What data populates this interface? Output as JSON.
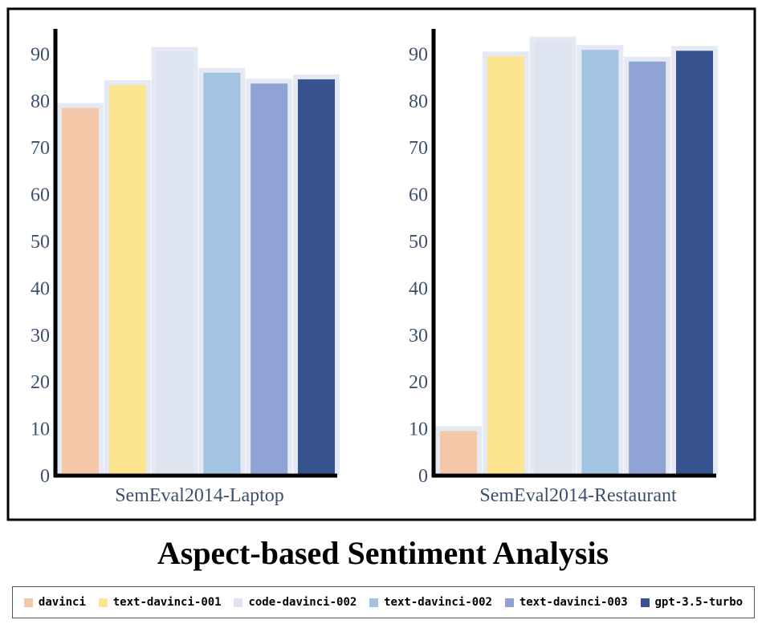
{
  "title": "Aspect-based Sentiment Analysis",
  "colors": {
    "davinci": "#f5c7a9",
    "text-davinci-001": "#fde491",
    "code-davinci-002": "#dde3ef",
    "text-davinci-002": "#a3c3e3",
    "text-davinci-003": "#8fa3d5",
    "gpt-3.5-turbo": "#36528f",
    "bar_shadow": "#e4e9f3",
    "axis": "#000000",
    "tick_text": "#3d4f6e",
    "frame": "#000000"
  },
  "legend": [
    {
      "label": "davinci",
      "color": "#f5c7a9"
    },
    {
      "label": "text-davinci-001",
      "color": "#fde491"
    },
    {
      "label": "code-davinci-002",
      "color": "#dde3ef"
    },
    {
      "label": "text-davinci-002",
      "color": "#a3c3e3"
    },
    {
      "label": "text-davinci-003",
      "color": "#8fa3d5"
    },
    {
      "label": "gpt-3.5-turbo",
      "color": "#36528f"
    }
  ],
  "chart_data": [
    {
      "type": "bar",
      "categories": [
        "SemEval2014-Laptop"
      ],
      "series": [
        {
          "name": "davinci",
          "values": [
            78.5
          ]
        },
        {
          "name": "text-davinci-001",
          "values": [
            83.4
          ]
        },
        {
          "name": "code-davinci-002",
          "values": [
            90.5
          ]
        },
        {
          "name": "text-davinci-002",
          "values": [
            86.0
          ]
        },
        {
          "name": "text-davinci-003",
          "values": [
            83.7
          ]
        },
        {
          "name": "gpt-3.5-turbo",
          "values": [
            84.6
          ]
        }
      ],
      "ylim": [
        0,
        95
      ],
      "yticks": [
        0,
        10,
        20,
        30,
        40,
        50,
        60,
        70,
        80,
        90
      ],
      "xlabel": "",
      "ylabel": "",
      "grid": false,
      "legend_position": "bottom"
    },
    {
      "type": "bar",
      "categories": [
        "SemEval2014-Restaurant"
      ],
      "series": [
        {
          "name": "davinci",
          "values": [
            9.5
          ]
        },
        {
          "name": "text-davinci-001",
          "values": [
            89.5
          ]
        },
        {
          "name": "code-davinci-002",
          "values": [
            92.7
          ]
        },
        {
          "name": "text-davinci-002",
          "values": [
            90.9
          ]
        },
        {
          "name": "text-davinci-003",
          "values": [
            88.4
          ]
        },
        {
          "name": "gpt-3.5-turbo",
          "values": [
            90.7
          ]
        }
      ],
      "ylim": [
        0,
        95
      ],
      "yticks": [
        0,
        10,
        20,
        30,
        40,
        50,
        60,
        70,
        80,
        90
      ],
      "xlabel": "",
      "ylabel": "",
      "grid": false,
      "legend_position": "bottom"
    }
  ]
}
